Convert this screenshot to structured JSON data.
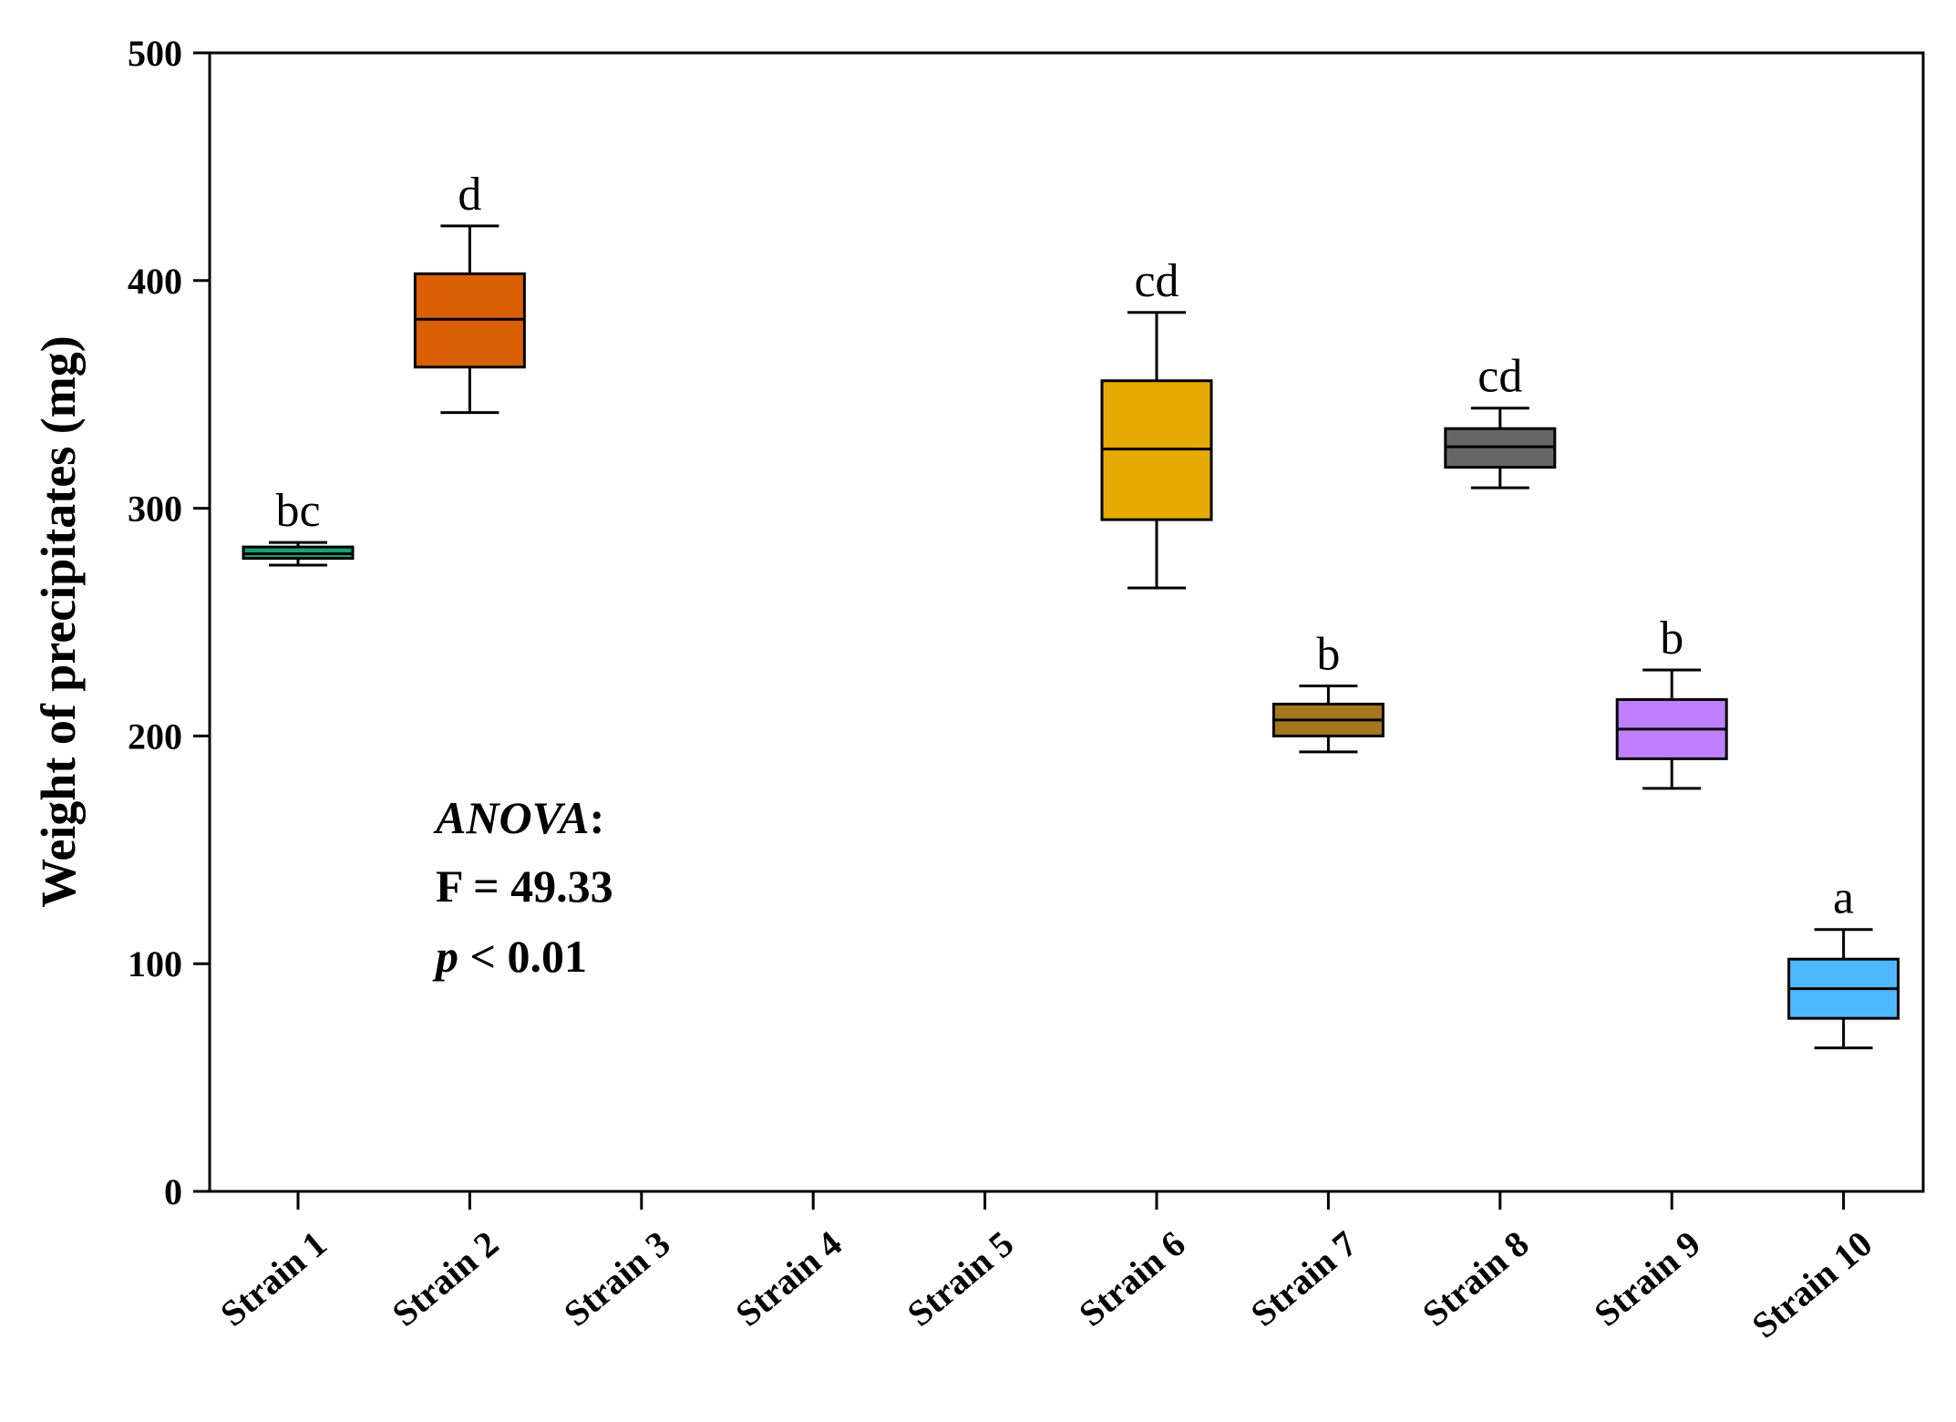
{
  "chart_data": {
    "type": "box",
    "title": "",
    "xlabel": "",
    "ylabel": "Weight of precipitates (mg)",
    "ylim": [
      0,
      500
    ],
    "yticks": [
      0,
      100,
      200,
      300,
      400,
      500
    ],
    "categories": [
      "Strain 1",
      "Strain 2",
      "Strain 3",
      "Strain 4",
      "Strain 5",
      "Strain 6",
      "Strain 7",
      "Strain 8",
      "Strain 9",
      "Strain 10"
    ],
    "boxes": [
      {
        "category": "Strain 1",
        "min": 275,
        "q1": 278,
        "median": 280,
        "q3": 283,
        "max": 285,
        "letter": "bc",
        "color": "#1a9e77"
      },
      {
        "category": "Strain 2",
        "min": 342,
        "q1": 362,
        "median": 383,
        "q3": 403,
        "max": 424,
        "letter": "d",
        "color": "#d95f02"
      },
      {
        "category": "Strain 6",
        "min": 265,
        "q1": 295,
        "median": 326,
        "q3": 356,
        "max": 386,
        "letter": "cd",
        "color": "#e6ab02"
      },
      {
        "category": "Strain 7",
        "min": 193,
        "q1": 200,
        "median": 207,
        "q3": 214,
        "max": 222,
        "letter": "b",
        "color": "#a6761d"
      },
      {
        "category": "Strain 8",
        "min": 309,
        "q1": 318,
        "median": 327,
        "q3": 335,
        "max": 344,
        "letter": "cd",
        "color": "#666666"
      },
      {
        "category": "Strain 9",
        "min": 177,
        "q1": 190,
        "median": 203,
        "q3": 216,
        "max": 229,
        "letter": "b",
        "color": "#bf7fff"
      },
      {
        "category": "Strain 10",
        "min": 63,
        "q1": 76,
        "median": 89,
        "q3": 102,
        "max": 115,
        "letter": "a",
        "color": "#4db8ff"
      }
    ],
    "annotation": {
      "anova_word": "ANOVA",
      "anova_colon": ":",
      "f_line": "F = 49.33",
      "p_symbol": "p",
      "p_rest": " < 0.01"
    }
  }
}
